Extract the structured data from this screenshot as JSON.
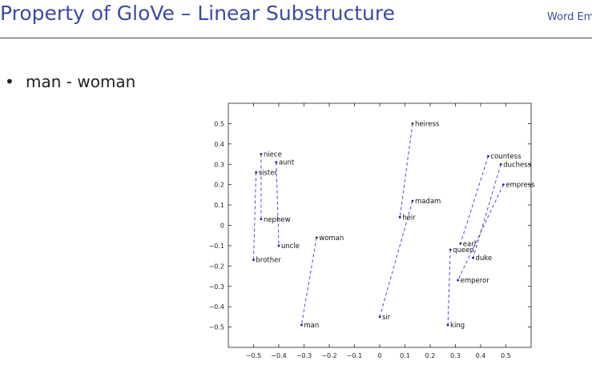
{
  "slide": {
    "title": "Property of GloVe – Linear Substructure",
    "header_right": "Word Em",
    "bullet": "man - woman"
  },
  "chart_data": {
    "type": "scatter",
    "xlim": [
      -0.6,
      0.6
    ],
    "ylim": [
      -0.6,
      0.6
    ],
    "xticks": [
      -0.5,
      -0.4,
      -0.3,
      -0.2,
      -0.1,
      0,
      0.1,
      0.2,
      0.3,
      0.4,
      0.5
    ],
    "xtick_labels": [
      "−0.5",
      "−0.4",
      "−0.3",
      "−0.2",
      "−0.1",
      "0",
      "0.1",
      "0.2",
      "0.3",
      "0.4",
      "0.5"
    ],
    "yticks": [
      0.5,
      0.4,
      0.3,
      0.2,
      0.1,
      0,
      -0.1,
      -0.2,
      -0.3,
      -0.4,
      -0.5
    ],
    "ytick_labels": [
      "0.5",
      "0.4",
      "0.3",
      "0.2",
      "0.1",
      "0",
      "−0.1",
      "−0.2",
      "−0.3",
      "−0.4",
      "−0.5"
    ],
    "grid": false,
    "point_color": "#1f1fa0",
    "line_color": "#3a3ad0",
    "points": [
      {
        "label": "niece",
        "x": -0.47,
        "y": 0.35
      },
      {
        "label": "aunt",
        "x": -0.41,
        "y": 0.31
      },
      {
        "label": "sister",
        "x": -0.49,
        "y": 0.26
      },
      {
        "label": "nephew",
        "x": -0.47,
        "y": 0.03
      },
      {
        "label": "uncle",
        "x": -0.4,
        "y": -0.1
      },
      {
        "label": "brother",
        "x": -0.5,
        "y": -0.17
      },
      {
        "label": "woman",
        "x": -0.25,
        "y": -0.06
      },
      {
        "label": "man",
        "x": -0.31,
        "y": -0.49
      },
      {
        "label": "heiress",
        "x": 0.13,
        "y": 0.5
      },
      {
        "label": "madam",
        "x": 0.13,
        "y": 0.12
      },
      {
        "label": "heir",
        "x": 0.08,
        "y": 0.04
      },
      {
        "label": "sir",
        "x": 0.0,
        "y": -0.45
      },
      {
        "label": "countess",
        "x": 0.43,
        "y": 0.34
      },
      {
        "label": "duchess",
        "x": 0.48,
        "y": 0.3
      },
      {
        "label": "empress",
        "x": 0.49,
        "y": 0.2
      },
      {
        "label": "earl",
        "x": 0.32,
        "y": -0.09
      },
      {
        "label": "queen",
        "x": 0.28,
        "y": -0.12
      },
      {
        "label": "duke",
        "x": 0.37,
        "y": -0.16
      },
      {
        "label": "emperor",
        "x": 0.31,
        "y": -0.27
      },
      {
        "label": "king",
        "x": 0.27,
        "y": -0.49
      }
    ],
    "pairs": [
      [
        "niece",
        "nephew"
      ],
      [
        "aunt",
        "uncle"
      ],
      [
        "sister",
        "brother"
      ],
      [
        "woman",
        "man"
      ],
      [
        "heiress",
        "heir"
      ],
      [
        "madam",
        "sir"
      ],
      [
        "countess",
        "earl"
      ],
      [
        "duchess",
        "duke"
      ],
      [
        "empress",
        "emperor"
      ],
      [
        "queen",
        "king"
      ]
    ]
  }
}
